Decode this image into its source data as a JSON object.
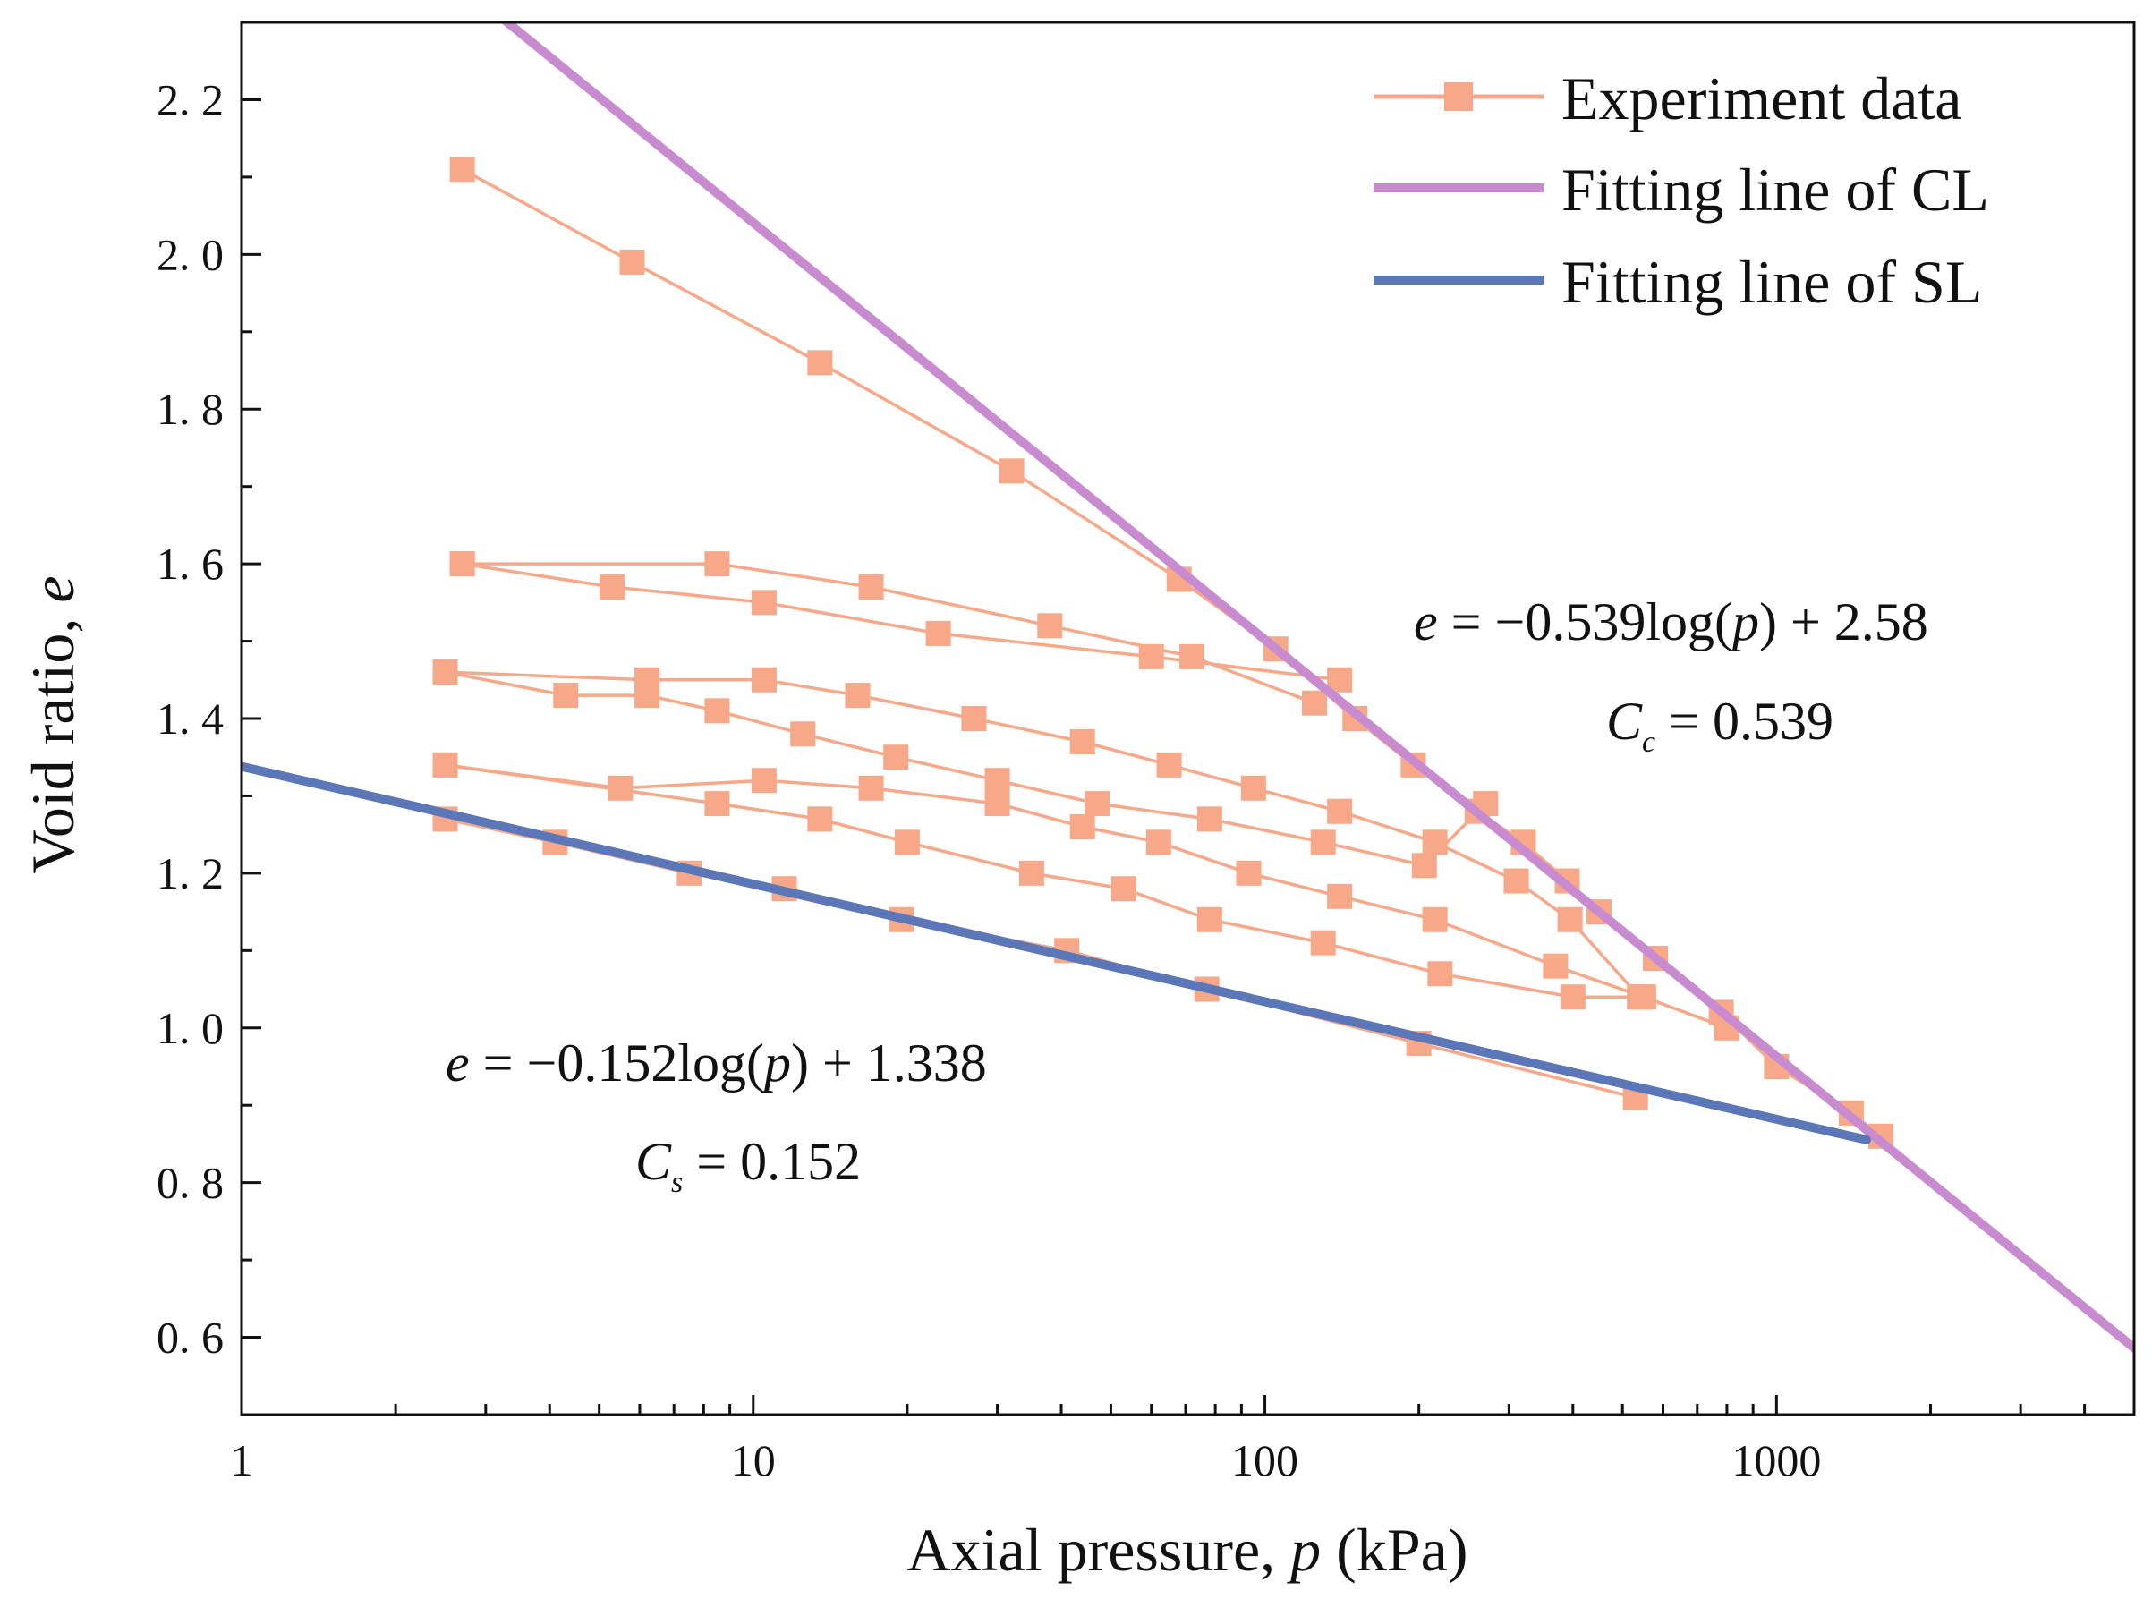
{
  "chart_data": {
    "type": "line",
    "title": "",
    "xlabel_prefix": "Axial pressure, ",
    "xlabel_var": "p",
    "xlabel_suffix": " (kPa)",
    "ylabel_prefix": "Void ratio, ",
    "ylabel_var": "e",
    "xscale": "log",
    "xlim": [
      1,
      5000
    ],
    "ylim": [
      0.5,
      2.3
    ],
    "x_ticks": [
      1,
      10,
      100,
      1000
    ],
    "x_tick_labels": [
      "1",
      "10",
      "100",
      "1000"
    ],
    "y_ticks": [
      0.6,
      0.8,
      1.0,
      1.2,
      1.4,
      1.6,
      1.8,
      2.0,
      2.2
    ],
    "y_tick_labels": [
      "0. 6",
      "0. 8",
      "1. 0",
      "1. 2",
      "1. 4",
      "1. 6",
      "1. 8",
      "2. 0",
      "2. 2"
    ],
    "legend_position": "top-right",
    "series": [
      {
        "name": "Experiment data",
        "kind": "markers-line",
        "color": "#F7A889",
        "segments": [
          [
            [
              2.7,
              2.11
            ],
            [
              5.8,
              1.99
            ],
            [
              13.5,
              1.86
            ],
            [
              32,
              1.72
            ],
            [
              68,
              1.58
            ],
            [
              105,
              1.49
            ],
            [
              150,
              1.4
            ],
            [
              195,
              1.34
            ],
            [
              260,
              1.28
            ],
            [
              320,
              1.24
            ],
            [
              390,
              1.19
            ],
            [
              450,
              1.15
            ],
            [
              580,
              1.09
            ],
            [
              780,
              1.02
            ],
            [
              1000,
              0.95
            ],
            [
              1400,
              0.89
            ],
            [
              1600,
              0.86
            ]
          ],
          [
            [
              2.7,
              1.6
            ],
            [
              8.5,
              1.6
            ],
            [
              17,
              1.57
            ],
            [
              38,
              1.52
            ],
            [
              72,
              1.48
            ],
            [
              125,
              1.42
            ]
          ],
          [
            [
              2.7,
              1.6
            ],
            [
              5.3,
              1.57
            ],
            [
              10.5,
              1.55
            ],
            [
              23,
              1.51
            ],
            [
              60,
              1.48
            ],
            [
              140,
              1.45
            ]
          ],
          [
            [
              2.5,
              1.46
            ],
            [
              6.2,
              1.45
            ],
            [
              10.5,
              1.45
            ],
            [
              16,
              1.43
            ],
            [
              27,
              1.4
            ],
            [
              44,
              1.37
            ],
            [
              65,
              1.34
            ],
            [
              95,
              1.31
            ],
            [
              140,
              1.28
            ],
            [
              215,
              1.24
            ],
            [
              310,
              1.19
            ],
            [
              395,
              1.14
            ],
            [
              540,
              1.04
            ]
          ],
          [
            [
              2.5,
              1.46
            ],
            [
              4.3,
              1.43
            ],
            [
              6.2,
              1.43
            ],
            [
              8.5,
              1.41
            ],
            [
              12.5,
              1.38
            ],
            [
              19,
              1.35
            ],
            [
              30,
              1.32
            ],
            [
              47,
              1.29
            ],
            [
              78,
              1.27
            ],
            [
              130,
              1.24
            ],
            [
              205,
              1.21
            ],
            [
              270,
              1.29
            ]
          ],
          [
            [
              2.5,
              1.34
            ],
            [
              5.5,
              1.31
            ],
            [
              10.5,
              1.32
            ],
            [
              17,
              1.31
            ],
            [
              30,
              1.29
            ],
            [
              44,
              1.26
            ],
            [
              62,
              1.24
            ],
            [
              93,
              1.2
            ],
            [
              140,
              1.17
            ],
            [
              215,
              1.14
            ],
            [
              370,
              1.08
            ],
            [
              550,
              1.04
            ],
            [
              800,
              1.0
            ]
          ],
          [
            [
              2.5,
              1.34
            ],
            [
              8.5,
              1.29
            ],
            [
              13.5,
              1.27
            ],
            [
              20,
              1.24
            ],
            [
              35,
              1.2
            ],
            [
              53,
              1.18
            ],
            [
              78,
              1.14
            ],
            [
              130,
              1.11
            ],
            [
              220,
              1.07
            ],
            [
              400,
              1.04
            ],
            [
              540,
              1.04
            ]
          ],
          [
            [
              2.5,
              1.27
            ],
            [
              4.1,
              1.24
            ],
            [
              7.5,
              1.2
            ],
            [
              11.5,
              1.18
            ],
            [
              19.5,
              1.14
            ],
            [
              41,
              1.1
            ],
            [
              77,
              1.05
            ],
            [
              200,
              0.98
            ],
            [
              530,
              0.91
            ]
          ]
        ]
      },
      {
        "name": "Fitting line of CL",
        "kind": "line",
        "color": "#C98BD0",
        "slope": -0.539,
        "intercept": 2.58,
        "x_range": [
          3.0,
          5000
        ]
      },
      {
        "name": "Fitting line of SL",
        "kind": "line",
        "color": "#5B77B8",
        "slope": -0.152,
        "intercept": 1.338,
        "x_range": [
          1,
          1500
        ]
      }
    ],
    "annotations": {
      "cl_equation": {
        "lhs": "e",
        "eq": " = −0.539log(",
        "var": "p",
        "rhs": ") + 2.58",
        "coef_symbol": "C",
        "coef_sub": "c",
        "coef_value": " = 0.539"
      },
      "sl_equation": {
        "lhs": "e",
        "eq": " = −0.152log(",
        "var": "p",
        "rhs": ") + 1.338",
        "coef_symbol": "C",
        "coef_sub": "s",
        "coef_value": " = 0.152"
      }
    }
  }
}
